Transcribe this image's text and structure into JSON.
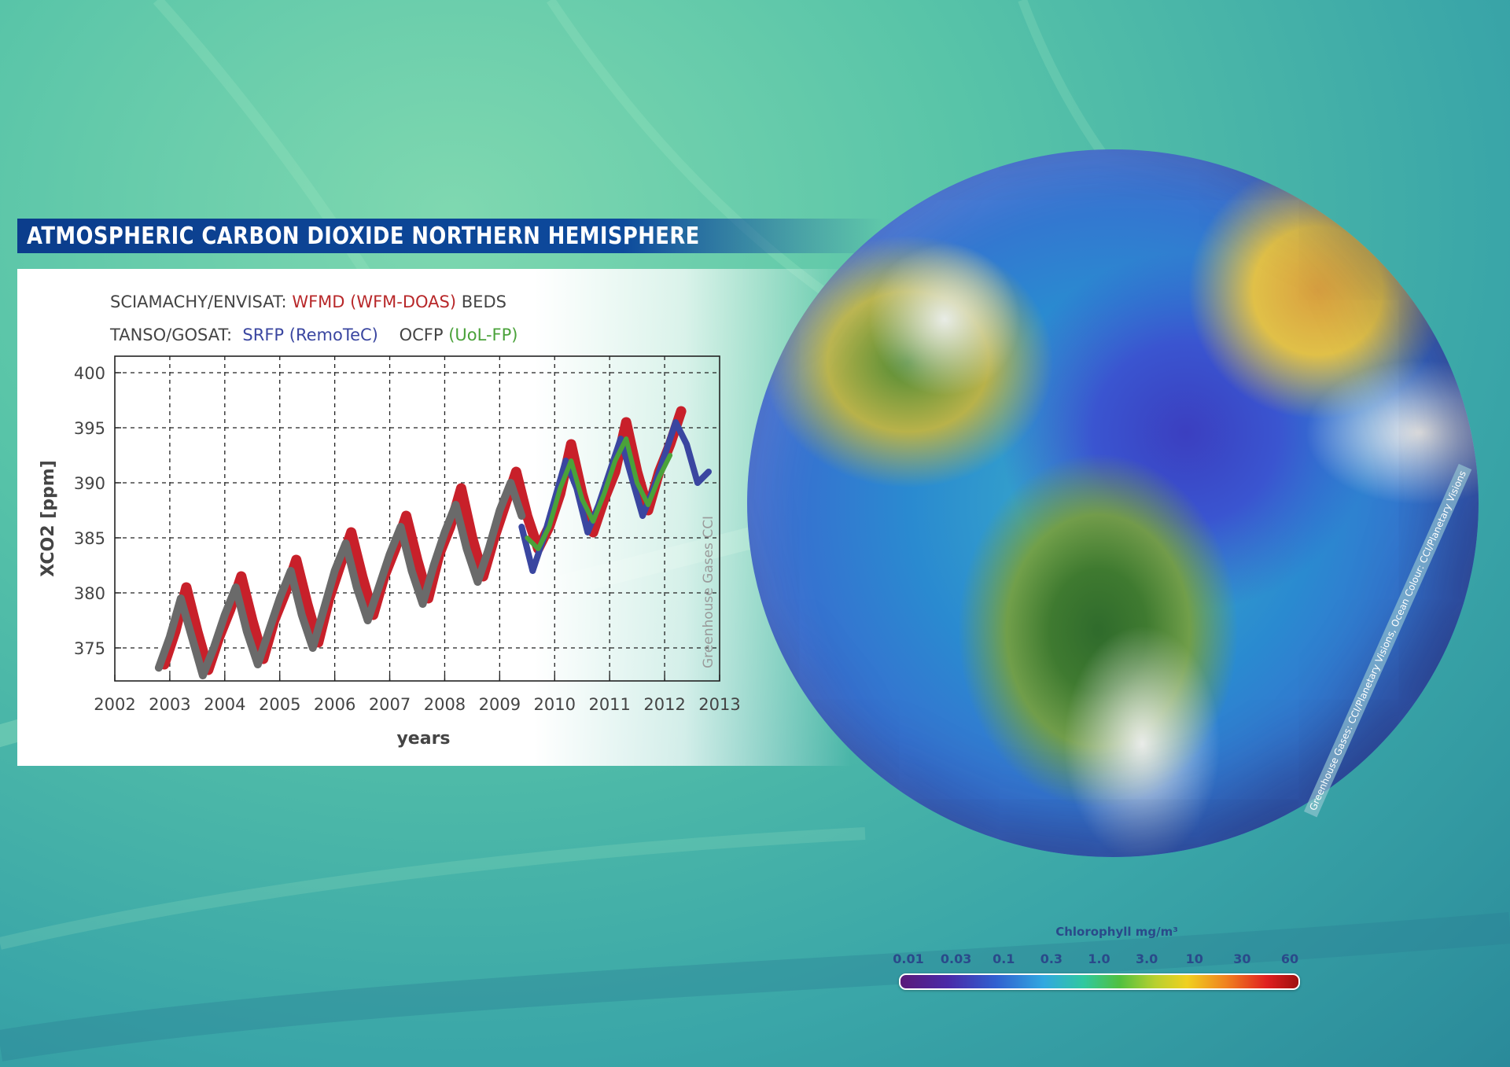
{
  "title": "ATMOSPHERIC CARBON DIOXIDE NORTHERN HEMISPHERE",
  "sources": {
    "line1": {
      "instrument": "SCIAMACHY/ENVISAT:",
      "wfmd": "WFMD (WFM-DOAS)",
      "beds": "BEDS"
    },
    "line2": {
      "instrument": "TANSO/GOSAT:",
      "srfp": "SRFP (RemoTeC)",
      "ocfp_prefix": "OCFP",
      "ocfp_name": "(UoL-FP)"
    }
  },
  "watermark_chart": "Greenhouse Gases CCI",
  "globe_credit": "Greenhouse Gases: CCI/Planetary Visions, Ocean Colour: CCI/Planetary Visions",
  "colorbar": {
    "title": "Chlorophyll mg/m³",
    "ticks": [
      "0.01",
      "0.03",
      "0.1",
      "0.3",
      "1.0",
      "3.0",
      "10",
      "30",
      "60"
    ]
  },
  "colors": {
    "wfmd": "#c8202a",
    "beds": "#6a6a6a",
    "srfp": "#3a46a0",
    "ocfp": "#4aa23a",
    "title_bar": "#0b3d8c"
  },
  "chart_data": {
    "type": "line",
    "title": "",
    "xlabel": "years",
    "ylabel": "XCO2 [ppm]",
    "xlim": [
      2002,
      2013
    ],
    "ylim": [
      372,
      401.5
    ],
    "xticks": [
      2002,
      2003,
      2004,
      2005,
      2006,
      2007,
      2008,
      2009,
      2010,
      2011,
      2012,
      2013
    ],
    "yticks": [
      375,
      380,
      385,
      390,
      395,
      400
    ],
    "grid": true,
    "series": [
      {
        "name": "WFMD (WFM-DOAS)",
        "x": [
          2002.9,
          2003.1,
          2003.3,
          2003.5,
          2003.7,
          2003.9,
          2004.1,
          2004.3,
          2004.5,
          2004.7,
          2004.9,
          2005.1,
          2005.3,
          2005.5,
          2005.7,
          2005.9,
          2006.1,
          2006.3,
          2006.5,
          2006.7,
          2006.9,
          2007.1,
          2007.3,
          2007.5,
          2007.7,
          2007.9,
          2008.1,
          2008.3,
          2008.5,
          2008.7,
          2008.9,
          2009.1,
          2009.3,
          2009.5,
          2009.7,
          2009.9,
          2010.1,
          2010.3,
          2010.5,
          2010.7,
          2010.9,
          2011.1,
          2011.3,
          2011.5,
          2011.7,
          2011.9,
          2012.1,
          2012.3
        ],
        "y": [
          373.5,
          376.5,
          380.5,
          376.5,
          373.0,
          376.0,
          378.5,
          381.5,
          377.5,
          374.0,
          377.5,
          380.0,
          383.0,
          379.0,
          375.5,
          379.5,
          382.5,
          385.5,
          381.5,
          378.0,
          381.5,
          384.0,
          387.0,
          383.0,
          379.5,
          383.5,
          386.0,
          389.5,
          385.0,
          381.5,
          385.0,
          388.0,
          391.0,
          387.0,
          384.0,
          386.0,
          389.0,
          393.5,
          389.0,
          385.5,
          388.5,
          391.0,
          395.5,
          391.0,
          387.5,
          391.0,
          393.5,
          396.5
        ]
      },
      {
        "name": "BEDS",
        "x": [
          2002.8,
          2003.0,
          2003.2,
          2003.4,
          2003.6,
          2003.8,
          2004.0,
          2004.2,
          2004.4,
          2004.6,
          2004.8,
          2005.0,
          2005.2,
          2005.4,
          2005.6,
          2005.8,
          2006.0,
          2006.2,
          2006.4,
          2006.6,
          2006.8,
          2007.0,
          2007.2,
          2007.4,
          2007.6,
          2007.8,
          2008.0,
          2008.2,
          2008.4,
          2008.6,
          2008.8,
          2009.0,
          2009.2,
          2009.4
        ],
        "y": [
          373.2,
          376.0,
          379.5,
          376.0,
          372.5,
          375.0,
          378.0,
          380.5,
          376.5,
          373.5,
          376.5,
          379.5,
          382.0,
          378.0,
          375.0,
          378.5,
          382.0,
          384.5,
          380.5,
          377.5,
          380.5,
          383.5,
          386.0,
          382.0,
          379.0,
          382.5,
          385.5,
          388.0,
          384.0,
          381.0,
          384.0,
          387.5,
          390.0,
          387.0
        ]
      },
      {
        "name": "SRFP (RemoTeC)",
        "x": [
          2009.4,
          2009.6,
          2009.8,
          2010.0,
          2010.2,
          2010.4,
          2010.6,
          2010.8,
          2011.0,
          2011.2,
          2011.4,
          2011.6,
          2011.8,
          2012.0,
          2012.2,
          2012.4,
          2012.6,
          2012.8
        ],
        "y": [
          386.0,
          382.0,
          385.0,
          388.5,
          392.0,
          389.5,
          385.5,
          388.0,
          391.0,
          394.0,
          390.5,
          387.0,
          389.5,
          392.5,
          395.5,
          393.5,
          390.0,
          391.0
        ]
      },
      {
        "name": "OCFP (UoL-FP)",
        "x": [
          2009.5,
          2009.7,
          2009.9,
          2010.1,
          2010.3,
          2010.5,
          2010.7,
          2010.9,
          2011.1,
          2011.3,
          2011.5,
          2011.7,
          2011.9,
          2012.1
        ],
        "y": [
          385.0,
          384.0,
          386.0,
          389.5,
          392.0,
          388.5,
          386.5,
          389.0,
          392.0,
          394.0,
          390.0,
          388.0,
          390.5,
          392.5
        ]
      }
    ]
  }
}
